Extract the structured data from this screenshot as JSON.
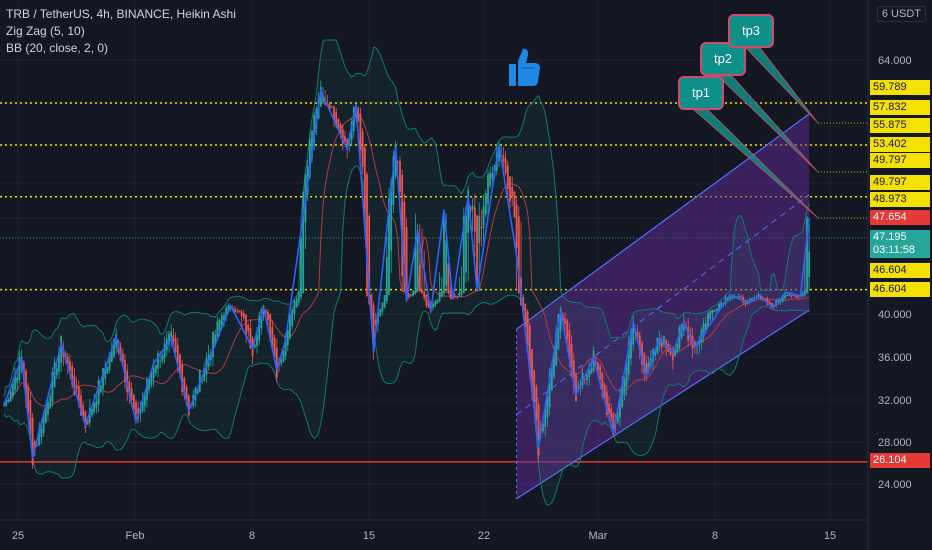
{
  "legend": {
    "symbol": "TRB / TetherUS, 4h, BINANCE, Heikin Ashi",
    "zigzag": "Zig Zag (5, 10)",
    "bb": "BB (20, close, 2, 0)"
  },
  "currency": "6 USDT",
  "targets": [
    {
      "label": "tp1"
    },
    {
      "label": "tp2"
    },
    {
      "label": "tp3"
    }
  ],
  "colors": {
    "background": "#131722",
    "grid": "#1e222d",
    "bull": "#26a69a",
    "bear": "#ef5350",
    "zigzag": "#2962ff",
    "bb_band": "#0f7a70",
    "bb_basis": "#b23a48",
    "level_yellow": "#f5e100",
    "support_red": "#e53935",
    "channel_fill": "#5b2a8a",
    "tp_box": "#0e8f8a"
  },
  "chart_data": {
    "type": "candlestick",
    "x_ticks": [
      "25",
      "Feb",
      "8",
      "15",
      "22",
      "Mar",
      "8",
      "15"
    ],
    "y_ticks": [
      "64.000",
      "40.000",
      "36.000",
      "32.000",
      "28.000",
      "24.000"
    ],
    "y_range": [
      22,
      66
    ],
    "dotted_levels": [
      59.789,
      53.402,
      48.973,
      46.604
    ],
    "solid_levels": [
      26.104
    ],
    "price_labels": [
      {
        "value": "59.789",
        "style": "yellow"
      },
      {
        "value": "57.832",
        "style": "yellow"
      },
      {
        "value": "55.875",
        "style": "yellow"
      },
      {
        "value": "53.402",
        "style": "yellow"
      },
      {
        "value": "49.797",
        "style": "yellow"
      },
      {
        "value": "49.797",
        "style": "yellow"
      },
      {
        "value": "48.973",
        "style": "yellow"
      },
      {
        "value": "47.654",
        "style": "red"
      },
      {
        "value": "47.195",
        "style": "teal",
        "sub": "03:11:58"
      },
      {
        "value": "46.604",
        "style": "yellow"
      },
      {
        "value": "46.604",
        "style": "yellow"
      },
      {
        "value": "26.104",
        "style": "red"
      }
    ],
    "zigzag_points": [
      [
        0,
        31.5
      ],
      [
        8,
        35.9
      ],
      [
        13,
        26.5
      ],
      [
        26,
        37.2
      ],
      [
        37,
        29.6
      ],
      [
        51,
        37.9
      ],
      [
        60,
        29.9
      ],
      [
        68,
        35.4
      ],
      [
        76,
        37.7
      ],
      [
        84,
        31.0
      ],
      [
        103,
        42.3
      ],
      [
        113,
        36.8
      ],
      [
        118,
        41.8
      ],
      [
        124,
        34.8
      ],
      [
        128,
        37.6
      ],
      [
        144,
        61.0
      ],
      [
        156,
        53.0
      ],
      [
        160,
        59.2
      ],
      [
        168,
        36.5
      ],
      [
        178,
        53.2
      ],
      [
        183,
        43.6
      ],
      [
        188,
        47.4
      ],
      [
        194,
        40.8
      ],
      [
        200,
        48.2
      ],
      [
        204,
        43.9
      ],
      [
        211,
        49.0
      ],
      [
        215,
        46.6
      ],
      [
        225,
        53.4
      ],
      [
        233,
        47.0
      ],
      [
        243,
        27.5
      ],
      [
        253,
        40.7
      ],
      [
        260,
        32.5
      ],
      [
        268,
        35.9
      ],
      [
        277,
        28.8
      ],
      [
        286,
        39.2
      ],
      [
        292,
        34.3
      ],
      [
        298,
        37.8
      ],
      [
        304,
        36.4
      ],
      [
        309,
        39.1
      ],
      [
        314,
        36.9
      ],
      [
        330,
        45.4
      ],
      [
        338,
        43.1
      ],
      [
        344,
        45.1
      ],
      [
        349,
        41.8
      ],
      [
        356,
        46.0
      ],
      [
        362,
        44.9
      ],
      [
        366,
        47.7
      ]
    ],
    "channel": {
      "lower_start": 22.6,
      "lower_end": 41.1,
      "upper_start": 38.6,
      "upper_end": 57.1,
      "x_start": 233,
      "x_end": 366
    }
  }
}
